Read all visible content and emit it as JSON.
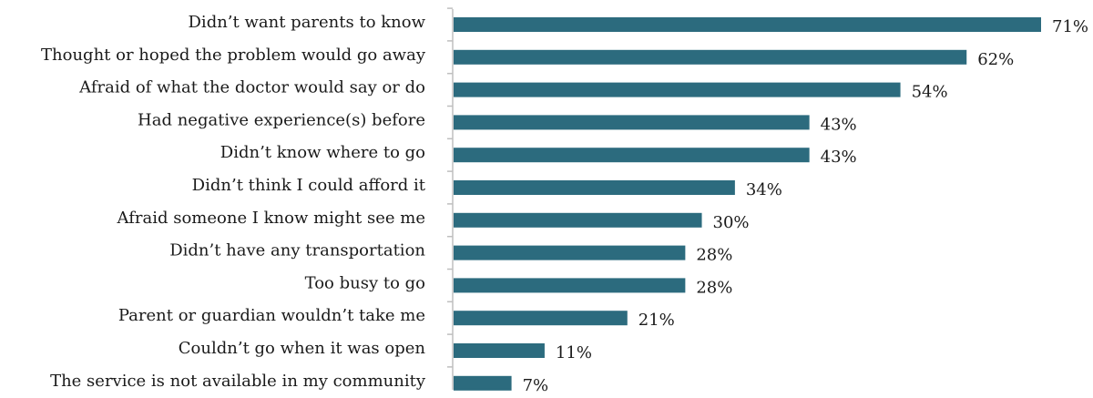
{
  "chart_data": {
    "type": "bar",
    "orientation": "horizontal",
    "categories": [
      "Didn’t want parents to know",
      "Thought or hoped the problem would go away",
      "Afraid of what the doctor would say or do",
      "Had negative experience(s) before",
      "Didn’t know where to go",
      "Didn’t think I could afford it",
      "Afraid someone I know might see me",
      "Didn’t have any transportation",
      "Too busy to go",
      "Parent or guardian wouldn’t take me",
      "Couldn’t go when it was open",
      "The service is not available in my community"
    ],
    "values": [
      71,
      62,
      54,
      43,
      43,
      34,
      30,
      28,
      28,
      21,
      11,
      7
    ],
    "value_labels": [
      "71%",
      "62%",
      "54%",
      "43%",
      "43%",
      "34%",
      "30%",
      "28%",
      "28%",
      "21%",
      "11%",
      "7%"
    ],
    "unit": "%",
    "xlim": [
      0,
      71
    ],
    "grid": false,
    "legend": "none",
    "bar_color": "#2c6b7e",
    "axis_color": "#bfbfbf",
    "title": "",
    "xlabel": "",
    "ylabel": ""
  }
}
